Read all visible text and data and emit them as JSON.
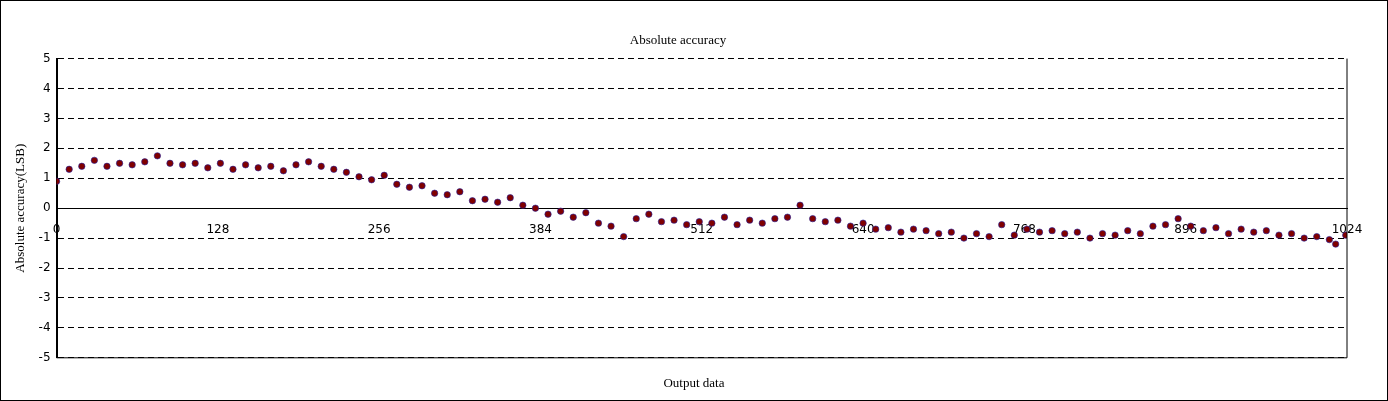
{
  "chart_data": {
    "type": "scatter",
    "title": "Absolute accuracy",
    "xlabel": "Output data",
    "ylabel": "Absolute accuracy(LSB)",
    "x": [
      0,
      10,
      20,
      30,
      40,
      50,
      60,
      70,
      80,
      90,
      100,
      110,
      120,
      130,
      140,
      150,
      160,
      170,
      180,
      190,
      200,
      210,
      220,
      230,
      240,
      250,
      260,
      270,
      280,
      290,
      300,
      310,
      320,
      330,
      340,
      350,
      360,
      370,
      380,
      390,
      400,
      410,
      420,
      430,
      440,
      450,
      460,
      470,
      480,
      490,
      500,
      510,
      520,
      530,
      540,
      550,
      560,
      570,
      580,
      590,
      600,
      610,
      620,
      630,
      640,
      650,
      660,
      670,
      680,
      690,
      700,
      710,
      720,
      730,
      740,
      750,
      760,
      770,
      780,
      790,
      800,
      810,
      820,
      830,
      840,
      850,
      860,
      870,
      880,
      890,
      900,
      910,
      920,
      930,
      940,
      950,
      960,
      970,
      980,
      990,
      1000,
      1010,
      1015,
      1023
    ],
    "series": [
      {
        "color": "#800000",
        "values": [
          0.9,
          1.3,
          1.4,
          1.6,
          1.4,
          1.5,
          1.45,
          1.55,
          1.75,
          1.5,
          1.45,
          1.5,
          1.35,
          1.5,
          1.3,
          1.45,
          1.35,
          1.4,
          1.25,
          1.45,
          1.55,
          1.4,
          1.3,
          1.2,
          1.05,
          0.95,
          1.1,
          0.8,
          0.7,
          0.75,
          0.5,
          0.45,
          0.55,
          0.25,
          0.3,
          0.2,
          0.35,
          0.1,
          0.0,
          -0.2,
          -0.1,
          -0.3,
          -0.15,
          -0.5,
          -0.6,
          -0.95,
          -0.35,
          -0.2,
          -0.45,
          -0.4,
          -0.55,
          -0.45,
          -0.5,
          -0.3,
          -0.55,
          -0.4,
          -0.5,
          -0.35,
          -0.3,
          0.1,
          -0.35,
          -0.45,
          -0.4,
          -0.6,
          -0.5,
          -0.7,
          -0.65,
          -0.8,
          -0.7,
          -0.75,
          -0.85,
          -0.8,
          -1.0,
          -0.85,
          -0.95,
          -0.55,
          -0.9,
          -0.7,
          -0.8,
          -0.75,
          -0.85,
          -0.8,
          -1.0,
          -0.85,
          -0.9,
          -0.75,
          -0.85,
          -0.6,
          -0.55,
          -0.35,
          -0.6,
          -0.75,
          -0.65,
          -0.85,
          -0.7,
          -0.8,
          -0.75,
          -0.9,
          -0.85,
          -1.0,
          -0.95,
          -1.05,
          -1.2,
          -0.9
        ]
      }
    ],
    "xlim": [
      0,
      1024
    ],
    "xticks": [
      0,
      128,
      256,
      384,
      512,
      640,
      768,
      896,
      1024
    ],
    "ylim": [
      -5,
      5
    ],
    "yticks": [
      -5,
      -4,
      -3,
      -2,
      -1,
      0,
      1,
      2,
      3,
      4,
      5
    ],
    "grid": "y",
    "marker": "circle",
    "legend": false
  }
}
